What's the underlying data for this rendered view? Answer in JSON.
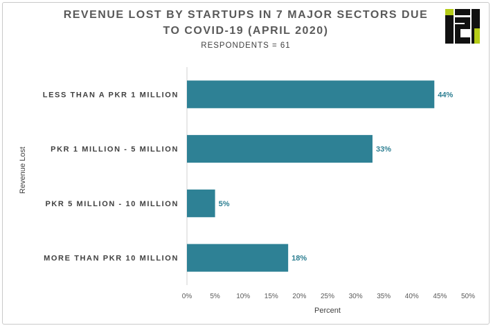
{
  "chart_data": {
    "type": "bar",
    "orientation": "horizontal",
    "title": "REVENUE LOST BY STARTUPS IN 7 MAJOR SECTORS DUE TO COVID-19 (APRIL 2020)",
    "subtitle": "RESPONDENTS = 61",
    "categories": [
      "LESS THAN A PKR 1 MILLION",
      "PKR 1 MILLION - 5 MILLION",
      "PKR 5 MILLION - 10 MILLION",
      "MORE THAN PKR 10 MILLION"
    ],
    "values": [
      44,
      33,
      5,
      18
    ],
    "value_labels": [
      "44%",
      "33%",
      "5%",
      "18%"
    ],
    "xlabel": "Percent",
    "ylabel": "Revenue Lost",
    "xlim": [
      0,
      50
    ],
    "xticks": [
      "0%",
      "5%",
      "10%",
      "15%",
      "20%",
      "25%",
      "30%",
      "35%",
      "40%",
      "45%",
      "50%"
    ],
    "grid": false,
    "legend": "none",
    "bar_color": "#2e8195",
    "label_color": "#2e7f92"
  },
  "logo": {
    "text": "i2i"
  }
}
